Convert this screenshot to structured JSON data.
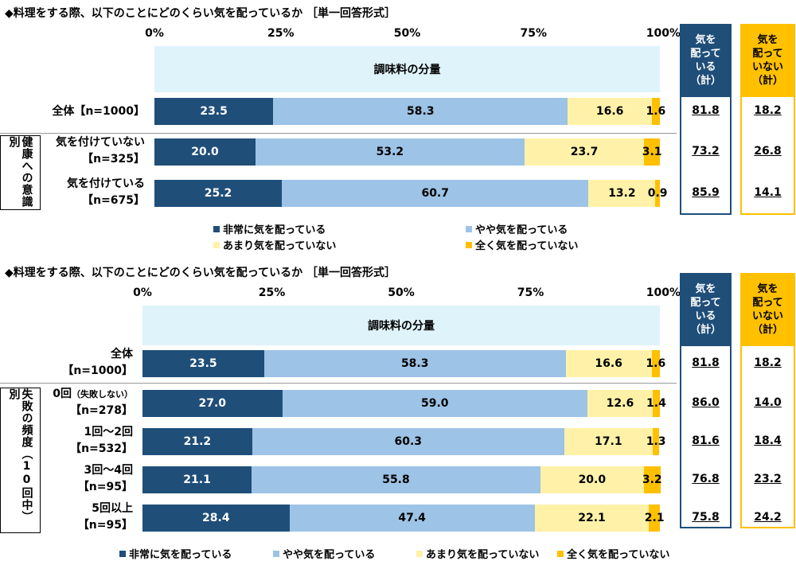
{
  "colors": {
    "seg1": "#1f4e79",
    "seg2": "#9dc3e6",
    "seg3": "#fff2a8",
    "seg4": "#ffc000",
    "band": "#dff3fb"
  },
  "columns": {
    "aware": [
      "気を",
      "配って",
      "いる",
      "（計）"
    ],
    "not_aware": [
      "気を",
      "配って",
      "いない",
      "（計）"
    ]
  },
  "legend": [
    "非常に気を配っている",
    "やや気を配っている",
    "あまり気を配っていない",
    "全く気を配っていない"
  ],
  "chart_data": [
    {
      "type": "bar",
      "orientation": "horizontal-stacked",
      "title": "◆料理をする際、以下のことにどのくらい気を配っているか ［単一回答形式］",
      "band_label": "調味料の分量",
      "ticks": [
        "0%",
        "25%",
        "50%",
        "75%",
        "100%"
      ],
      "xlim": [
        0,
        100
      ],
      "group_label": "健康への意識別",
      "categories": [
        {
          "line1": "全体【n=1000】",
          "line2": ""
        },
        {
          "line1": "気を付けていない",
          "line2": "【n=325】"
        },
        {
          "line1": "気を付けている",
          "line2": "【n=675】"
        }
      ],
      "series": [
        {
          "name": "非常に気を配っている",
          "values": [
            23.5,
            20.0,
            25.2
          ]
        },
        {
          "name": "やや気を配っている",
          "values": [
            58.3,
            53.2,
            60.7
          ]
        },
        {
          "name": "あまり気を配っていない",
          "values": [
            16.6,
            23.7,
            13.2
          ]
        },
        {
          "name": "全く気を配っていない",
          "values": [
            1.6,
            3.1,
            0.9
          ]
        }
      ],
      "labels": [
        [
          "23.5",
          "58.3",
          "16.6",
          "1.6"
        ],
        [
          "20.0",
          "53.2",
          "23.7",
          "3.1"
        ],
        [
          "25.2",
          "60.7",
          "13.2",
          "0.9"
        ]
      ],
      "totals_aware": [
        "81.8",
        "73.2",
        "85.9"
      ],
      "totals_not_aware": [
        "18.2",
        "26.8",
        "14.1"
      ]
    },
    {
      "type": "bar",
      "orientation": "horizontal-stacked",
      "title": "◆料理をする際、以下のことにどのくらい気を配っているか ［単一回答形式］",
      "band_label": "調味料の分量",
      "ticks": [
        "0%",
        "25%",
        "50%",
        "75%",
        "100%"
      ],
      "xlim": [
        0,
        100
      ],
      "group_label": "失敗の頻度（10回中）別",
      "categories": [
        {
          "line1": "全体",
          "line2": "【n=1000】",
          "small": ""
        },
        {
          "line1": "0回",
          "line2": "【n=278】",
          "small": "（失敗しない）"
        },
        {
          "line1": "1回～2回",
          "line2": "【n=532】",
          "small": ""
        },
        {
          "line1": "3回～4回",
          "line2": "【n=95】",
          "small": ""
        },
        {
          "line1": "5回以上",
          "line2": "【n=95】",
          "small": ""
        }
      ],
      "series": [
        {
          "name": "非常に気を配っている",
          "values": [
            23.5,
            27.0,
            21.2,
            21.1,
            28.4
          ]
        },
        {
          "name": "やや気を配っている",
          "values": [
            58.3,
            59.0,
            60.3,
            55.8,
            47.4
          ]
        },
        {
          "name": "あまり気を配っていない",
          "values": [
            16.6,
            12.6,
            17.1,
            20.0,
            22.1
          ]
        },
        {
          "name": "全く気を配っていない",
          "values": [
            1.6,
            1.4,
            1.3,
            3.2,
            2.1
          ]
        }
      ],
      "labels": [
        [
          "23.5",
          "58.3",
          "16.6",
          "1.6"
        ],
        [
          "27.0",
          "59.0",
          "12.6",
          "1.4"
        ],
        [
          "21.2",
          "60.3",
          "17.1",
          "1.3"
        ],
        [
          "21.1",
          "55.8",
          "20.0",
          "3.2"
        ],
        [
          "28.4",
          "47.4",
          "22.1",
          "2.1"
        ]
      ],
      "totals_aware": [
        "81.8",
        "86.0",
        "81.6",
        "76.8",
        "75.8"
      ],
      "totals_not_aware": [
        "18.2",
        "14.0",
        "18.4",
        "23.2",
        "24.2"
      ]
    }
  ]
}
